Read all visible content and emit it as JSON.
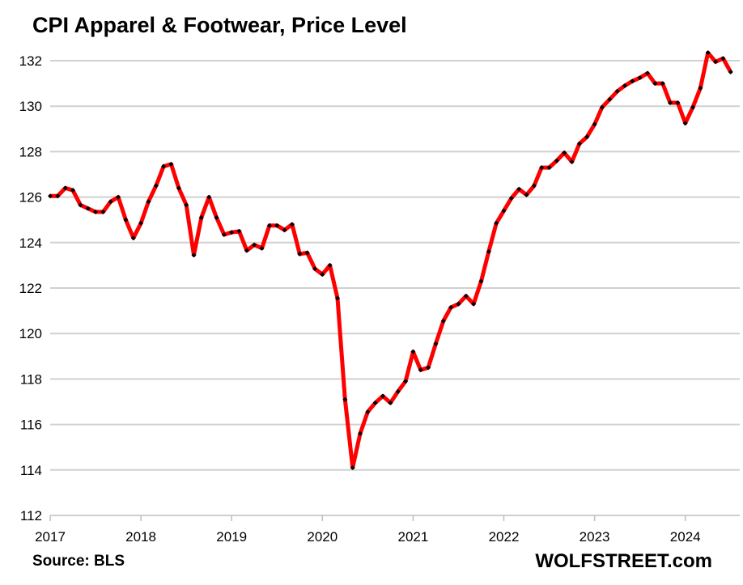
{
  "chart_data": {
    "type": "line",
    "title": "CPI Apparel & Footwear, Price Level",
    "source": "Source: BLS",
    "watermark": "WOLFSTREET.com",
    "xlabel": "",
    "ylabel": "",
    "ylim": [
      112,
      132
    ],
    "yticks": [
      "112",
      "114",
      "116",
      "118",
      "120",
      "122",
      "124",
      "126",
      "128",
      "130",
      "132"
    ],
    "xticks": [
      "2017",
      "2018",
      "2019",
      "2020",
      "2021",
      "2022",
      "2023",
      "2024"
    ],
    "grid": true,
    "legend": "none",
    "line_color": "#ff0000",
    "marker_color": "#000000",
    "start": "2017-01",
    "frequency": "monthly",
    "series": [
      {
        "values": [
          126.05,
          126.05,
          126.4,
          126.3,
          125.65,
          125.5,
          125.35,
          125.35,
          125.8,
          126.0,
          125.0,
          124.2,
          124.85,
          125.8,
          126.5,
          127.35,
          127.45,
          126.4,
          125.65,
          123.45,
          125.1,
          126.0,
          125.1,
          124.35,
          124.45,
          124.5,
          123.65,
          123.9,
          123.75,
          124.75,
          124.75,
          124.55,
          124.8,
          123.5,
          123.55,
          122.85,
          122.6,
          123.0,
          121.55,
          117.1,
          114.1,
          115.6,
          116.55,
          116.95,
          117.25,
          116.95,
          117.45,
          117.9,
          119.2,
          118.4,
          118.5,
          119.55,
          120.55,
          121.15,
          121.3,
          121.65,
          121.3,
          122.3,
          123.6,
          124.85,
          125.4,
          125.95,
          126.35,
          126.1,
          126.5,
          127.3,
          127.3,
          127.6,
          127.95,
          127.55,
          128.35,
          128.65,
          129.2,
          129.95,
          130.3,
          130.65,
          130.9,
          131.1,
          131.25,
          131.45,
          131.0,
          131.0,
          130.15,
          130.15,
          129.25,
          129.95,
          130.8,
          132.35,
          131.95,
          132.1,
          131.5
        ]
      }
    ]
  }
}
